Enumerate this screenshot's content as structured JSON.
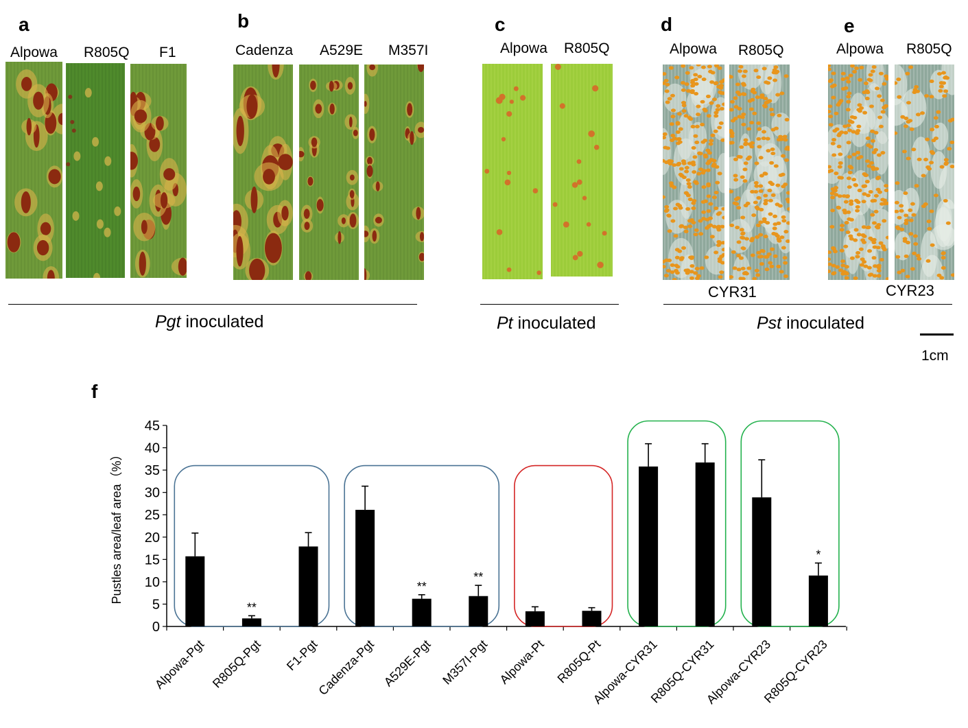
{
  "panels": {
    "a": {
      "label": "a",
      "leaves": [
        "Alpowa",
        "R805Q",
        "F1"
      ]
    },
    "b": {
      "label": "b",
      "leaves": [
        "Cadenza",
        "A529E",
        "M357I"
      ]
    },
    "c": {
      "label": "c",
      "leaves": [
        "Alpowa",
        "R805Q"
      ]
    },
    "d": {
      "label": "d",
      "leaves": [
        "Alpowa",
        "R805Q"
      ],
      "strain": "CYR31"
    },
    "e": {
      "label": "e",
      "leaves": [
        "Alpowa",
        "R805Q"
      ],
      "strain": "CYR23"
    },
    "f": {
      "label": "f"
    }
  },
  "groups": {
    "pgt": {
      "pathogen": "Pgt",
      "suffix": " inoculated"
    },
    "pt": {
      "pathogen": "Pt",
      "suffix": " inoculated"
    },
    "pst": {
      "pathogen": "Pst",
      "suffix": " inoculated"
    }
  },
  "scale_bar": {
    "label": "1cm"
  },
  "colors": {
    "stem_rust_leaf": "#6f9a3a",
    "stem_rust_pustule": "#8b2a10",
    "leaf_rust_leaf": "#9ccc3a",
    "stripe_rust_leaf": "#8fa89c",
    "stripe_rust_pustule": "#e8951c",
    "box_blue": "#4a7394",
    "box_red": "#d42424",
    "box_green": "#22b14c"
  },
  "chart_data": {
    "type": "bar",
    "title": "",
    "ylabel": "Pustles area/leaf area（%）",
    "xlabel": "",
    "ylim": [
      0,
      45
    ],
    "yticks": [
      0,
      5,
      10,
      15,
      20,
      25,
      30,
      35,
      40,
      45
    ],
    "categories": [
      "Alpowa-Pgt",
      "R805Q-Pgt",
      "F1-Pgt",
      "Cadenza-Pgt",
      "A529E-Pgt",
      "M357I-Pgt",
      "Alpowa-Pt",
      "R805Q-Pt",
      "Alpowa-CYR31",
      "R805Q-CYR31",
      "Alpowa-CYR23",
      "R805Q-CYR23"
    ],
    "values": [
      15.7,
      1.8,
      17.9,
      26.1,
      6.2,
      6.8,
      3.4,
      3.5,
      35.8,
      36.7,
      28.9,
      11.4
    ],
    "errors": [
      5.2,
      0.6,
      3.1,
      5.3,
      0.9,
      2.4,
      1.0,
      0.7,
      5.1,
      4.2,
      8.4,
      2.8
    ],
    "significance": [
      "",
      "**",
      "",
      "",
      "**",
      "**",
      "",
      "",
      "",
      "",
      "",
      "*"
    ],
    "boxes": [
      {
        "from": 0,
        "to": 2,
        "color": "box_blue",
        "ymax": 36
      },
      {
        "from": 3,
        "to": 5,
        "color": "box_blue",
        "ymax": 36
      },
      {
        "from": 6,
        "to": 7,
        "color": "box_red",
        "ymax": 36
      },
      {
        "from": 8,
        "to": 9,
        "color": "box_green",
        "ymax": 46
      },
      {
        "from": 10,
        "to": 11,
        "color": "box_green",
        "ymax": 46
      }
    ]
  }
}
